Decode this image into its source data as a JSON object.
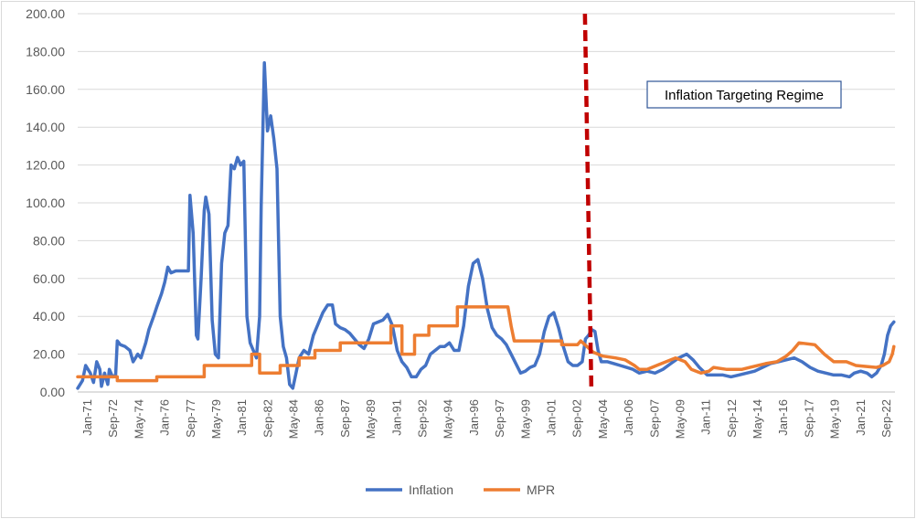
{
  "chart_data": {
    "type": "line",
    "title": "",
    "xlabel": "",
    "ylabel": "",
    "ylim": [
      0,
      200
    ],
    "y_ticks": [
      "0.00",
      "20.00",
      "40.00",
      "60.00",
      "80.00",
      "100.00",
      "120.00",
      "140.00",
      "160.00",
      "180.00",
      "200.00"
    ],
    "x_tick_labels": [
      "Jan-71",
      "Sep-72",
      "May-74",
      "Jan-76",
      "Sep-77",
      "May-79",
      "Jan-81",
      "Sep-82",
      "May-84",
      "Jan-86",
      "Sep-87",
      "May-89",
      "Jan-91",
      "Sep-92",
      "May-94",
      "Jan-96",
      "Sep-97",
      "May-99",
      "Jan-01",
      "Sep-02",
      "May-04",
      "Jan-06",
      "Sep-07",
      "May-09",
      "Jan-11",
      "Sep-12",
      "May-14",
      "Jan-16",
      "Sep-17",
      "May-19",
      "Jan-21",
      "Sep-22"
    ],
    "x_range": [
      "Jan-71",
      "Sep-22"
    ],
    "grid": "horizontal",
    "legend_position": "bottom",
    "annotation": {
      "text": "Inflation Targeting Regime",
      "marker_date": 2003.3,
      "line_color": "#c00000",
      "line_style": "dashed"
    },
    "series": [
      {
        "name": "Inflation",
        "color": "#4472c4",
        "points": [
          [
            1971.0,
            2
          ],
          [
            1971.3,
            6
          ],
          [
            1971.5,
            14
          ],
          [
            1971.8,
            10
          ],
          [
            1972.0,
            5
          ],
          [
            1972.2,
            16
          ],
          [
            1972.4,
            12
          ],
          [
            1972.5,
            3
          ],
          [
            1972.7,
            10
          ],
          [
            1972.9,
            4
          ],
          [
            1973.0,
            12
          ],
          [
            1973.2,
            8
          ],
          [
            1973.4,
            9
          ],
          [
            1973.5,
            27
          ],
          [
            1973.7,
            25
          ],
          [
            1974.0,
            24
          ],
          [
            1974.3,
            22
          ],
          [
            1974.5,
            16
          ],
          [
            1974.8,
            20
          ],
          [
            1975.0,
            18
          ],
          [
            1975.3,
            26
          ],
          [
            1975.5,
            33
          ],
          [
            1975.8,
            40
          ],
          [
            1976.0,
            45
          ],
          [
            1976.3,
            52
          ],
          [
            1976.5,
            58
          ],
          [
            1976.7,
            66
          ],
          [
            1976.9,
            63
          ],
          [
            1977.2,
            64
          ],
          [
            1977.5,
            64
          ],
          [
            1977.8,
            64
          ],
          [
            1978.0,
            64
          ],
          [
            1978.1,
            104
          ],
          [
            1978.3,
            84
          ],
          [
            1978.5,
            30
          ],
          [
            1978.6,
            28
          ],
          [
            1978.8,
            60
          ],
          [
            1979.0,
            96
          ],
          [
            1979.1,
            103
          ],
          [
            1979.3,
            94
          ],
          [
            1979.5,
            38
          ],
          [
            1979.7,
            20
          ],
          [
            1979.9,
            18
          ],
          [
            1980.1,
            68
          ],
          [
            1980.3,
            84
          ],
          [
            1980.5,
            88
          ],
          [
            1980.7,
            120
          ],
          [
            1980.9,
            118
          ],
          [
            1981.1,
            124
          ],
          [
            1981.3,
            120
          ],
          [
            1981.5,
            122
          ],
          [
            1981.7,
            40
          ],
          [
            1981.9,
            26
          ],
          [
            1982.1,
            22
          ],
          [
            1982.3,
            18
          ],
          [
            1982.5,
            40
          ],
          [
            1982.6,
            98
          ],
          [
            1982.8,
            174
          ],
          [
            1983.0,
            138
          ],
          [
            1983.2,
            146
          ],
          [
            1983.4,
            134
          ],
          [
            1983.6,
            118
          ],
          [
            1983.8,
            40
          ],
          [
            1984.0,
            24
          ],
          [
            1984.2,
            18
          ],
          [
            1984.4,
            4
          ],
          [
            1984.6,
            2
          ],
          [
            1984.8,
            10
          ],
          [
            1985.0,
            18
          ],
          [
            1985.3,
            22
          ],
          [
            1985.6,
            20
          ],
          [
            1985.9,
            30
          ],
          [
            1986.2,
            36
          ],
          [
            1986.5,
            42
          ],
          [
            1986.8,
            46
          ],
          [
            1987.1,
            46
          ],
          [
            1987.3,
            36
          ],
          [
            1987.6,
            34
          ],
          [
            1987.9,
            33
          ],
          [
            1988.2,
            31
          ],
          [
            1988.5,
            28
          ],
          [
            1988.8,
            25
          ],
          [
            1989.1,
            23
          ],
          [
            1989.4,
            28
          ],
          [
            1989.7,
            36
          ],
          [
            1990.0,
            37
          ],
          [
            1990.3,
            38
          ],
          [
            1990.6,
            41
          ],
          [
            1990.9,
            35
          ],
          [
            1991.2,
            22
          ],
          [
            1991.5,
            16
          ],
          [
            1991.8,
            13
          ],
          [
            1992.1,
            8
          ],
          [
            1992.4,
            8
          ],
          [
            1992.7,
            12
          ],
          [
            1993.0,
            14
          ],
          [
            1993.3,
            20
          ],
          [
            1993.6,
            22
          ],
          [
            1993.9,
            24
          ],
          [
            1994.2,
            24
          ],
          [
            1994.5,
            26
          ],
          [
            1994.8,
            22
          ],
          [
            1995.1,
            22
          ],
          [
            1995.4,
            35
          ],
          [
            1995.7,
            56
          ],
          [
            1996.0,
            68
          ],
          [
            1996.3,
            70
          ],
          [
            1996.6,
            60
          ],
          [
            1996.9,
            44
          ],
          [
            1997.2,
            34
          ],
          [
            1997.5,
            30
          ],
          [
            1997.8,
            28
          ],
          [
            1998.1,
            25
          ],
          [
            1998.4,
            20
          ],
          [
            1998.7,
            15
          ],
          [
            1999.0,
            10
          ],
          [
            1999.3,
            11
          ],
          [
            1999.6,
            13
          ],
          [
            1999.9,
            14
          ],
          [
            2000.2,
            20
          ],
          [
            2000.5,
            32
          ],
          [
            2000.8,
            40
          ],
          [
            2001.1,
            42
          ],
          [
            2001.4,
            34
          ],
          [
            2001.7,
            24
          ],
          [
            2002.0,
            16
          ],
          [
            2002.3,
            14
          ],
          [
            2002.6,
            14
          ],
          [
            2002.9,
            16
          ],
          [
            2003.1,
            28
          ],
          [
            2003.3,
            30
          ],
          [
            2003.5,
            33
          ],
          [
            2003.7,
            32
          ],
          [
            2003.9,
            22
          ],
          [
            2004.1,
            16
          ],
          [
            2004.5,
            16
          ],
          [
            2004.9,
            15
          ],
          [
            2005.3,
            14
          ],
          [
            2005.7,
            13
          ],
          [
            2006.1,
            12
          ],
          [
            2006.5,
            10
          ],
          [
            2007.0,
            11
          ],
          [
            2007.5,
            10
          ],
          [
            2008.0,
            12
          ],
          [
            2008.5,
            15
          ],
          [
            2009.0,
            18
          ],
          [
            2009.5,
            20
          ],
          [
            2009.9,
            17
          ],
          [
            2010.3,
            13
          ],
          [
            2010.8,
            9
          ],
          [
            2011.3,
            9
          ],
          [
            2011.8,
            9
          ],
          [
            2012.3,
            8
          ],
          [
            2012.8,
            9
          ],
          [
            2013.3,
            10
          ],
          [
            2013.8,
            11
          ],
          [
            2014.3,
            13
          ],
          [
            2014.8,
            15
          ],
          [
            2015.3,
            16
          ],
          [
            2015.8,
            17
          ],
          [
            2016.3,
            18
          ],
          [
            2016.8,
            16
          ],
          [
            2017.3,
            13
          ],
          [
            2017.8,
            11
          ],
          [
            2018.3,
            10
          ],
          [
            2018.8,
            9
          ],
          [
            2019.3,
            9
          ],
          [
            2019.8,
            8
          ],
          [
            2020.1,
            10
          ],
          [
            2020.5,
            11
          ],
          [
            2020.9,
            10
          ],
          [
            2021.2,
            8
          ],
          [
            2021.5,
            10
          ],
          [
            2021.8,
            14
          ],
          [
            2022.0,
            20
          ],
          [
            2022.2,
            30
          ],
          [
            2022.4,
            35
          ],
          [
            2022.6,
            37
          ]
        ]
      },
      {
        "name": "MPR",
        "color": "#ed7d31",
        "points": [
          [
            1971.0,
            8
          ],
          [
            1973.5,
            8
          ],
          [
            1973.5,
            6
          ],
          [
            1976.0,
            6
          ],
          [
            1976.0,
            8
          ],
          [
            1979.0,
            8
          ],
          [
            1979.0,
            14
          ],
          [
            1982.0,
            14
          ],
          [
            1982.0,
            20
          ],
          [
            1982.5,
            20
          ],
          [
            1982.5,
            10
          ],
          [
            1983.8,
            10
          ],
          [
            1983.8,
            14
          ],
          [
            1985.0,
            14
          ],
          [
            1985.0,
            18
          ],
          [
            1986.0,
            18
          ],
          [
            1986.0,
            22
          ],
          [
            1987.6,
            22
          ],
          [
            1987.6,
            26
          ],
          [
            1990.8,
            26
          ],
          [
            1990.8,
            35
          ],
          [
            1991.5,
            35
          ],
          [
            1991.5,
            20
          ],
          [
            1992.3,
            20
          ],
          [
            1992.3,
            30
          ],
          [
            1993.2,
            30
          ],
          [
            1993.2,
            35
          ],
          [
            1995.0,
            35
          ],
          [
            1995.0,
            45
          ],
          [
            1998.2,
            45
          ],
          [
            1998.4,
            35
          ],
          [
            1998.6,
            27
          ],
          [
            2001.6,
            27
          ],
          [
            2001.6,
            25
          ],
          [
            2002.6,
            25
          ],
          [
            2002.8,
            27
          ],
          [
            2003.2,
            24
          ],
          [
            2003.6,
            21
          ],
          [
            2004.2,
            19
          ],
          [
            2005.0,
            18
          ],
          [
            2005.6,
            17
          ],
          [
            2006.2,
            14
          ],
          [
            2006.5,
            12
          ],
          [
            2007.0,
            12
          ],
          [
            2007.6,
            14
          ],
          [
            2008.2,
            16
          ],
          [
            2008.8,
            18
          ],
          [
            2009.4,
            16
          ],
          [
            2009.8,
            12
          ],
          [
            2010.4,
            10
          ],
          [
            2010.9,
            11
          ],
          [
            2011.2,
            13
          ],
          [
            2012.0,
            12
          ],
          [
            2013.0,
            12
          ],
          [
            2013.5,
            13
          ],
          [
            2014.5,
            15
          ],
          [
            2015.2,
            16
          ],
          [
            2015.8,
            19
          ],
          [
            2016.2,
            22
          ],
          [
            2016.6,
            26
          ],
          [
            2017.6,
            25
          ],
          [
            2018.2,
            20
          ],
          [
            2018.8,
            16
          ],
          [
            2019.6,
            16
          ],
          [
            2020.2,
            14
          ],
          [
            2021.5,
            13
          ],
          [
            2021.9,
            14
          ],
          [
            2022.3,
            16
          ],
          [
            2022.5,
            20
          ],
          [
            2022.6,
            24
          ]
        ]
      }
    ]
  }
}
